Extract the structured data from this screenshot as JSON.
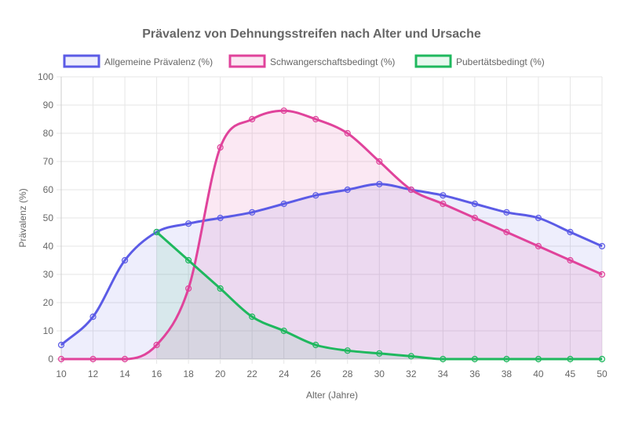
{
  "chart_data": {
    "type": "line",
    "title": "Prävalenz von Dehnungsstreifen nach Alter und Ursache",
    "xlabel": "Alter (Jahre)",
    "ylabel": "Prävalenz (%)",
    "categories": [
      "10",
      "12",
      "14",
      "16",
      "18",
      "20",
      "22",
      "24",
      "26",
      "28",
      "30",
      "32",
      "34",
      "36",
      "38",
      "40",
      "45",
      "50"
    ],
    "ylim": [
      0,
      100
    ],
    "yticks": [
      0,
      10,
      20,
      30,
      40,
      50,
      60,
      70,
      80,
      90,
      100
    ],
    "grid": true,
    "legend": "top-center",
    "series": [
      {
        "name": "Allgemeine Prävalenz (%)",
        "color": "#5b5be6",
        "fill": "rgba(91,91,230,0.10)",
        "values": [
          5,
          15,
          35,
          45,
          48,
          50,
          52,
          55,
          58,
          60,
          62,
          60,
          58,
          55,
          52,
          50,
          45,
          40
        ]
      },
      {
        "name": "Schwangerschaftsbedingt (%)",
        "color": "#e0439b",
        "fill": "rgba(224,67,155,0.12)",
        "values": [
          0,
          0,
          0,
          5,
          25,
          75,
          85,
          88,
          85,
          80,
          70,
          60,
          55,
          50,
          45,
          40,
          35,
          30
        ]
      },
      {
        "name": "Pubertätsbedingt (%)",
        "color": "#1fb85e",
        "fill": "rgba(31,184,94,0.10)",
        "values": [
          null,
          null,
          null,
          45,
          35,
          25,
          15,
          10,
          5,
          3,
          2,
          1,
          0,
          0,
          0,
          0,
          0,
          0
        ]
      }
    ]
  }
}
